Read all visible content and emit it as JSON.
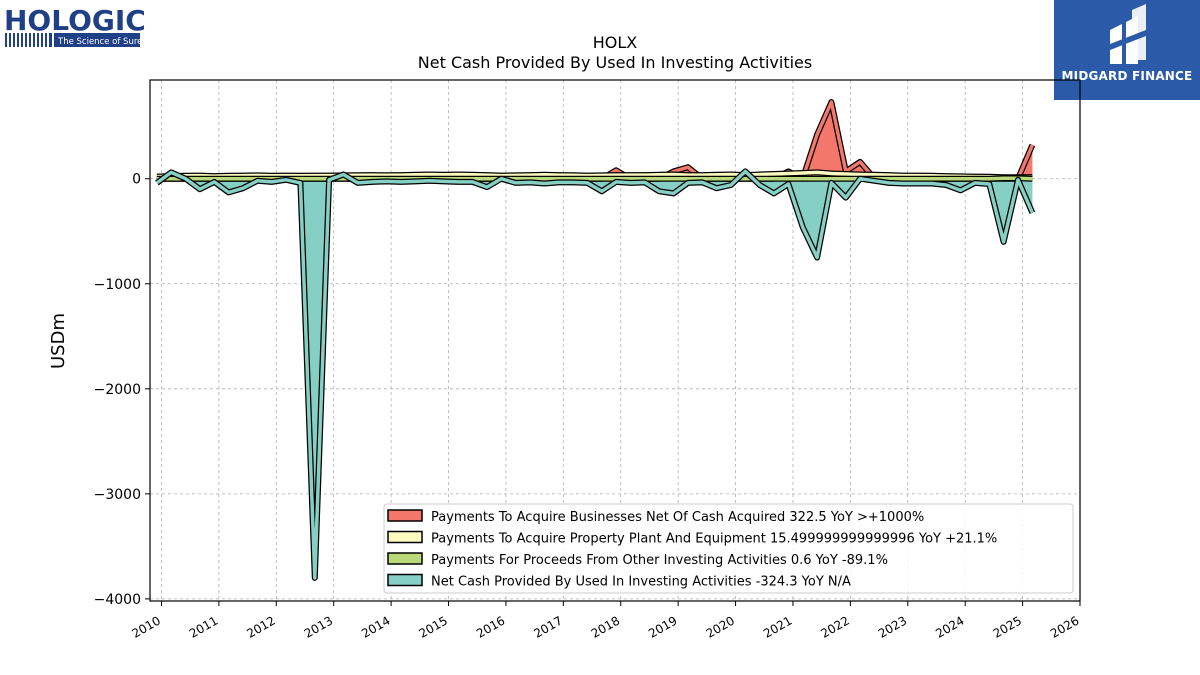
{
  "brand": {
    "company_logo_text": "HOLOGIC",
    "company_tagline": "The Science of Sure",
    "publisher_name": "MIDGARD FINANCE"
  },
  "colors": {
    "businesses": "#f4776b",
    "ppe": "#fdfbbf",
    "other": "#b9d87a",
    "net": "#86cfc4"
  },
  "chart_data": {
    "type": "area",
    "title": "HOLX",
    "subtitle": "Net Cash Provided By Used In Investing Activities",
    "xlabel": "",
    "ylabel": "USDm",
    "xlim": [
      2009.8,
      2026.0
    ],
    "ylim": [
      -4020,
      940
    ],
    "x_ticks": [
      "2010",
      "2011",
      "2012",
      "2013",
      "2014",
      "2015",
      "2016",
      "2017",
      "2018",
      "2019",
      "2020",
      "2021",
      "2022",
      "2023",
      "2024",
      "2025",
      "2026"
    ],
    "y_ticks": [
      0,
      -1000,
      -2000,
      -3000,
      -4000
    ],
    "y_tick_labels": [
      "0",
      "−1000",
      "−2000",
      "−3000",
      "−4000"
    ],
    "grid": true,
    "legend_position": "lower-right",
    "x": [
      2009.92,
      2010.17,
      2010.42,
      2010.67,
      2010.92,
      2011.17,
      2011.42,
      2011.67,
      2011.92,
      2012.17,
      2012.42,
      2012.67,
      2012.92,
      2013.17,
      2013.42,
      2013.67,
      2013.92,
      2014.17,
      2014.42,
      2014.67,
      2014.92,
      2015.17,
      2015.42,
      2015.67,
      2015.92,
      2016.17,
      2016.42,
      2016.67,
      2016.92,
      2017.17,
      2017.42,
      2017.67,
      2017.92,
      2018.17,
      2018.42,
      2018.67,
      2018.92,
      2019.17,
      2019.42,
      2019.67,
      2019.92,
      2020.17,
      2020.42,
      2020.67,
      2020.92,
      2021.17,
      2021.42,
      2021.67,
      2021.92,
      2022.17,
      2022.42,
      2022.67,
      2022.92,
      2023.17,
      2023.42,
      2023.67,
      2023.92,
      2024.17,
      2024.42,
      2024.67,
      2024.92,
      2025.17
    ],
    "series": [
      {
        "name": "Payments To Acquire Businesses Net Of Cash Acquired",
        "legend_label": "Payments To Acquire Businesses Net Of Cash Acquired  322.5 YoY >+1000%",
        "color_key": "businesses",
        "values": [
          0,
          0,
          0,
          0,
          0,
          0,
          0,
          0,
          0,
          0,
          0,
          0,
          0,
          0,
          0,
          0,
          0,
          0,
          0,
          0,
          0,
          0,
          0,
          0,
          0,
          0,
          0,
          0,
          0,
          0,
          0,
          0,
          80,
          0,
          0,
          0,
          70,
          110,
          0,
          0,
          0,
          0,
          0,
          0,
          70,
          0,
          420,
          730,
          70,
          160,
          0,
          0,
          0,
          0,
          0,
          0,
          0,
          0,
          0,
          0,
          0,
          322.5
        ]
      },
      {
        "name": "Payments To Acquire Property Plant And Equipment",
        "legend_label": "Payments To Acquire Property Plant And Equipment  15.499999999999996 YoY +21.1%",
        "color_key": "ppe",
        "values": [
          20,
          25,
          28,
          30,
          25,
          28,
          30,
          32,
          28,
          30,
          28,
          30,
          30,
          32,
          33,
          35,
          33,
          35,
          38,
          40,
          38,
          40,
          38,
          35,
          30,
          32,
          35,
          38,
          35,
          33,
          30,
          32,
          35,
          35,
          35,
          38,
          40,
          35,
          35,
          38,
          40,
          35,
          40,
          45,
          50,
          55,
          60,
          50,
          45,
          40,
          38,
          35,
          30,
          30,
          28,
          25,
          22,
          20,
          18,
          15,
          14,
          15.5
        ]
      },
      {
        "name": "Payments For Proceeds From Other Investing Activities",
        "legend_label": "Payments For Proceeds From Other Investing Activities  0.6 YoY -89.1%",
        "color_key": "other",
        "values": [
          0,
          0,
          0,
          0,
          0,
          0,
          0,
          0,
          0,
          0,
          0,
          0,
          0,
          0,
          0,
          0,
          0,
          0,
          0,
          0,
          0,
          0,
          0,
          0,
          0,
          0,
          0,
          0,
          0,
          0,
          0,
          0,
          0,
          0,
          0,
          0,
          0,
          0,
          0,
          0,
          0,
          0,
          0,
          0,
          0,
          0,
          0,
          0,
          0,
          0,
          0,
          0,
          0,
          0,
          0,
          0,
          0,
          0,
          0,
          5,
          5,
          0.6
        ]
      },
      {
        "name": "Net Cash Provided By Used In Investing Activities",
        "legend_label": "Net Cash Provided By Used In Investing Activities  -324.3 YoY N/A",
        "color_key": "net",
        "values": [
          -40,
          60,
          0,
          -100,
          -30,
          -130,
          -90,
          -20,
          -30,
          -10,
          -40,
          -3800,
          -10,
          40,
          -40,
          -30,
          -25,
          -30,
          -25,
          -20,
          -25,
          -30,
          -30,
          -80,
          0,
          -40,
          -35,
          -45,
          -35,
          -35,
          -40,
          -120,
          -30,
          -40,
          -35,
          -120,
          -140,
          -40,
          -35,
          -90,
          -60,
          70,
          -60,
          -140,
          -50,
          -460,
          -750,
          -40,
          -180,
          0,
          -20,
          -40,
          -45,
          -45,
          -45,
          -60,
          -110,
          -40,
          -50,
          -600,
          -10,
          -324.3
        ]
      }
    ]
  }
}
